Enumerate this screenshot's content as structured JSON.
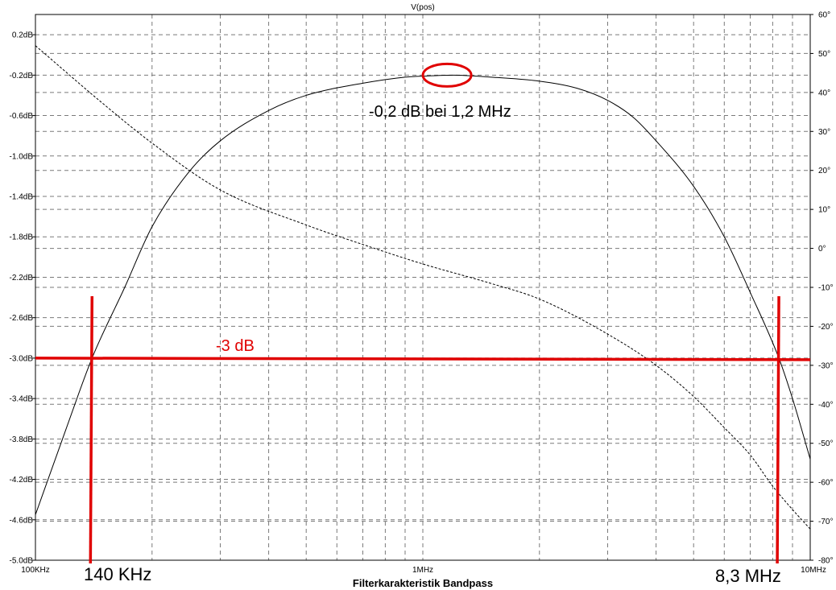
{
  "chart_data": {
    "type": "line",
    "title": "V(pos)",
    "xlabel": "Filterkarakteristik Bandpass",
    "x_scale": "log",
    "xlim": [
      100000,
      10000000
    ],
    "x_ticks": [
      {
        "value": 100000,
        "label": "100KHz"
      },
      {
        "value": 1000000,
        "label": "1MHz"
      },
      {
        "value": 10000000,
        "label": "10MHz"
      }
    ],
    "ylim_left": [
      -5.0,
      0.4
    ],
    "y_ticks_left": [
      "0.2dB",
      "-0.2dB",
      "-0.6dB",
      "-1.0dB",
      "-1.4dB",
      "-1.8dB",
      "-2.2dB",
      "-2.6dB",
      "-3.0dB",
      "-3.4dB",
      "-3.8dB",
      "-4.2dB",
      "-4.6dB",
      "-5.0dB"
    ],
    "y_tick_values_left": [
      0.2,
      -0.2,
      -0.6,
      -1.0,
      -1.4,
      -1.8,
      -2.2,
      -2.6,
      -3.0,
      -3.4,
      -3.8,
      -4.2,
      -4.6,
      -5.0
    ],
    "ylim_right": [
      -80,
      60
    ],
    "y_ticks_right": [
      "60°",
      "50°",
      "40°",
      "30°",
      "20°",
      "10°",
      "0°",
      "-10°",
      "-20°",
      "-30°",
      "-40°",
      "-50°",
      "-60°",
      "-70°",
      "-80°"
    ],
    "y_tick_values_right": [
      60,
      50,
      40,
      30,
      20,
      10,
      0,
      -10,
      -20,
      -30,
      -40,
      -50,
      -60,
      -70,
      -80
    ],
    "grid": true,
    "series": [
      {
        "axis": "left",
        "style": "solid",
        "color": "#000000",
        "x": [
          100000,
          120000,
          140000,
          170000,
          200000,
          250000,
          300000,
          400000,
          500000,
          700000,
          900000,
          1000000,
          1200000,
          1500000,
          2000000,
          2500000,
          3000000,
          3500000,
          4000000,
          5000000,
          6000000,
          7000000,
          8300000,
          9000000,
          10000000
        ],
        "y": [
          -4.55,
          -3.7,
          -3.0,
          -2.3,
          -1.7,
          -1.15,
          -0.85,
          -0.55,
          -0.4,
          -0.28,
          -0.22,
          -0.21,
          -0.2,
          -0.22,
          -0.26,
          -0.33,
          -0.45,
          -0.62,
          -0.85,
          -1.3,
          -1.8,
          -2.35,
          -3.0,
          -3.4,
          -4.0
        ]
      },
      {
        "axis": "right",
        "style": "dashed",
        "color": "#000000",
        "x": [
          100000,
          150000,
          200000,
          300000,
          500000,
          700000,
          1000000,
          1500000,
          2000000,
          3000000,
          4000000,
          5000000,
          6000000,
          7000000,
          8000000,
          9000000,
          10000000
        ],
        "y": [
          52,
          37,
          27,
          15,
          6,
          1,
          -4,
          -9,
          -13,
          -22,
          -30,
          -38,
          -46,
          -53,
          -61,
          -67,
          -72
        ]
      }
    ],
    "annotations": {
      "peak_label": "-0,2 dB bei 1,2 MHz",
      "peak": {
        "x": 1200000,
        "y": -0.2
      },
      "level_label": "-3 dB",
      "level_y": -3.0,
      "lower_label": "140 KHz",
      "lower_x": 140000,
      "upper_label": "8,3 MHz",
      "upper_x": 8300000,
      "color": "#e00000"
    }
  }
}
